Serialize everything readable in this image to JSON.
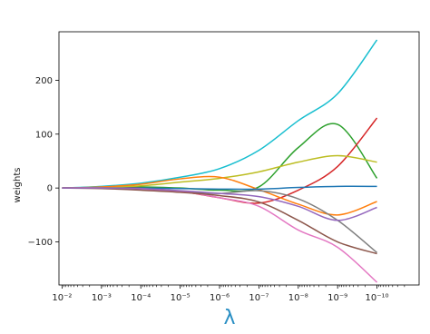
{
  "chart_data": {
    "type": "line",
    "title": "",
    "xlabel": "λ",
    "ylabel": "weights",
    "xscale": "log",
    "xaxis_reversed": true,
    "xlim": [
      0.012,
      8.5e-12
    ],
    "ylim": [
      -180,
      290
    ],
    "x_ticks": [
      0.01,
      0.001,
      0.0001,
      1e-05,
      1e-06,
      1e-07,
      1e-08,
      1e-09,
      1e-10
    ],
    "x_tick_labels": [
      "10⁻²",
      "10⁻³",
      "10⁻⁴",
      "10⁻⁵",
      "10⁻⁶",
      "10⁻⁷",
      "10⁻⁸",
      "10⁻⁹",
      "10⁻¹⁰"
    ],
    "y_ticks": [
      200,
      100,
      0,
      -100
    ],
    "y_tick_labels": [
      "200",
      "100",
      "0",
      "−100"
    ],
    "grid": false,
    "legend": false,
    "x": [
      0.01,
      0.001,
      0.0001,
      1e-05,
      1e-06,
      1e-07,
      1e-08,
      1e-09,
      1e-10
    ],
    "series": [
      {
        "color": "#17becf",
        "values": [
          0,
          3,
          9,
          20,
          36,
          70,
          125,
          175,
          275
        ]
      },
      {
        "color": "#2ca02c",
        "values": [
          0,
          1,
          2,
          0,
          -4,
          2,
          75,
          118,
          18
        ]
      },
      {
        "color": "#d62728",
        "values": [
          0,
          0,
          0,
          -6,
          -18,
          -28,
          -4,
          40,
          130
        ]
      },
      {
        "color": "#bcbd22",
        "values": [
          0,
          1,
          4,
          11,
          18,
          30,
          48,
          60,
          48
        ]
      },
      {
        "color": "#ff7f0e",
        "values": [
          0,
          2,
          7,
          17,
          20,
          -3,
          -30,
          -50,
          -25
        ]
      },
      {
        "color": "#1f77b4",
        "values": [
          0,
          0,
          0,
          -1,
          -2,
          -2,
          1,
          3,
          3
        ]
      },
      {
        "color": "#7f7f7f",
        "values": [
          0,
          0,
          -2,
          -6,
          -10,
          -5,
          -20,
          -60,
          -120
        ]
      },
      {
        "color": "#e377c2",
        "values": [
          0,
          0,
          -3,
          -6,
          -18,
          -34,
          -78,
          -110,
          -175
        ]
      },
      {
        "color": "#8c564b",
        "values": [
          0,
          -1,
          -4,
          -8,
          -14,
          -26,
          -60,
          -100,
          -122
        ]
      },
      {
        "color": "#9467bd",
        "values": [
          0,
          0,
          -1,
          -5,
          -10,
          -16,
          -34,
          -60,
          -36
        ]
      }
    ]
  }
}
